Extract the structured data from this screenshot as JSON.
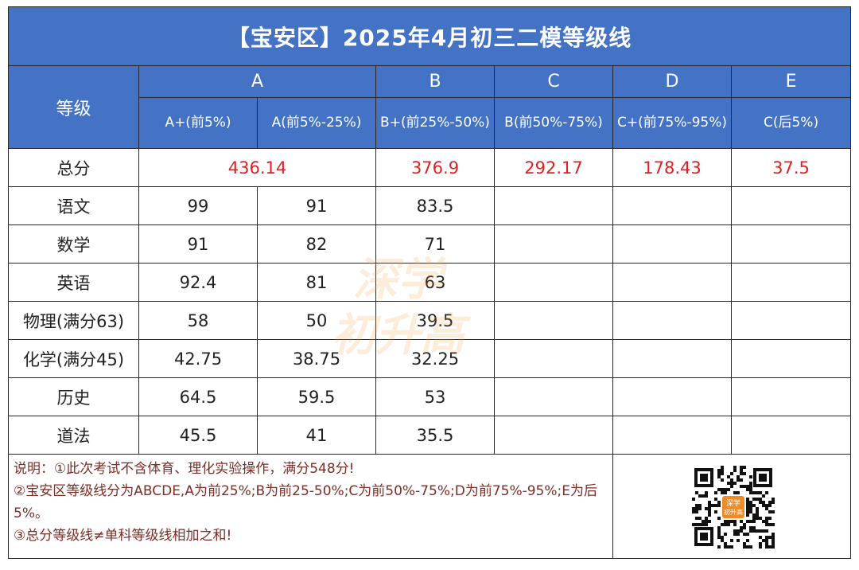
{
  "title": "【宝安区】2025年4月初三二模等级线",
  "header": {
    "grade_label": "等级",
    "groups": [
      "A",
      "B",
      "C",
      "D",
      "E"
    ],
    "subs": [
      "A+(前5%)",
      "A(前5%-25%)",
      "B+(前25%-50%)",
      "B(前50%-75%)",
      "C+(前75%-95%)",
      "C(后5%)"
    ]
  },
  "total": {
    "label": "总分",
    "A": "436.14",
    "B": "376.9",
    "C": "292.17",
    "D": "178.43",
    "E": "37.5"
  },
  "rows": [
    {
      "label": "语文",
      "a_plus": "99",
      "a": "91",
      "b_plus": "83.5"
    },
    {
      "label": "数学",
      "a_plus": "91",
      "a": "82",
      "b_plus": "71"
    },
    {
      "label": "英语",
      "a_plus": "92.4",
      "a": "81",
      "b_plus": "63"
    },
    {
      "label": "物理(满分63)",
      "a_plus": "58",
      "a": "50",
      "b_plus": "39.5"
    },
    {
      "label": "化学(满分45)",
      "a_plus": "42.75",
      "a": "38.75",
      "b_plus": "32.25"
    },
    {
      "label": "历史",
      "a_plus": "64.5",
      "a": "59.5",
      "b_plus": "53"
    },
    {
      "label": "道法",
      "a_plus": "45.5",
      "a": "41",
      "b_plus": "35.5"
    }
  ],
  "notes": [
    "说明：①此次考试不含体育、理化实验操作，满分548分!",
    "②宝安区等级线分为ABCDE,A为前25%;B为前25-50%;C为前50%-75%;D为前75%-95%;E为后5%。",
    "③总分等级线≠单科等级线相加之和!"
  ],
  "watermark": {
    "line1": "深学",
    "line2": "初升高"
  },
  "qr_logo": {
    "line1": "深学",
    "line2": "初升高"
  },
  "colors": {
    "header_bg": "#4472c4",
    "total_red": "#e02020",
    "note_text": "#7b2d26",
    "watermark": "#f0a040"
  }
}
